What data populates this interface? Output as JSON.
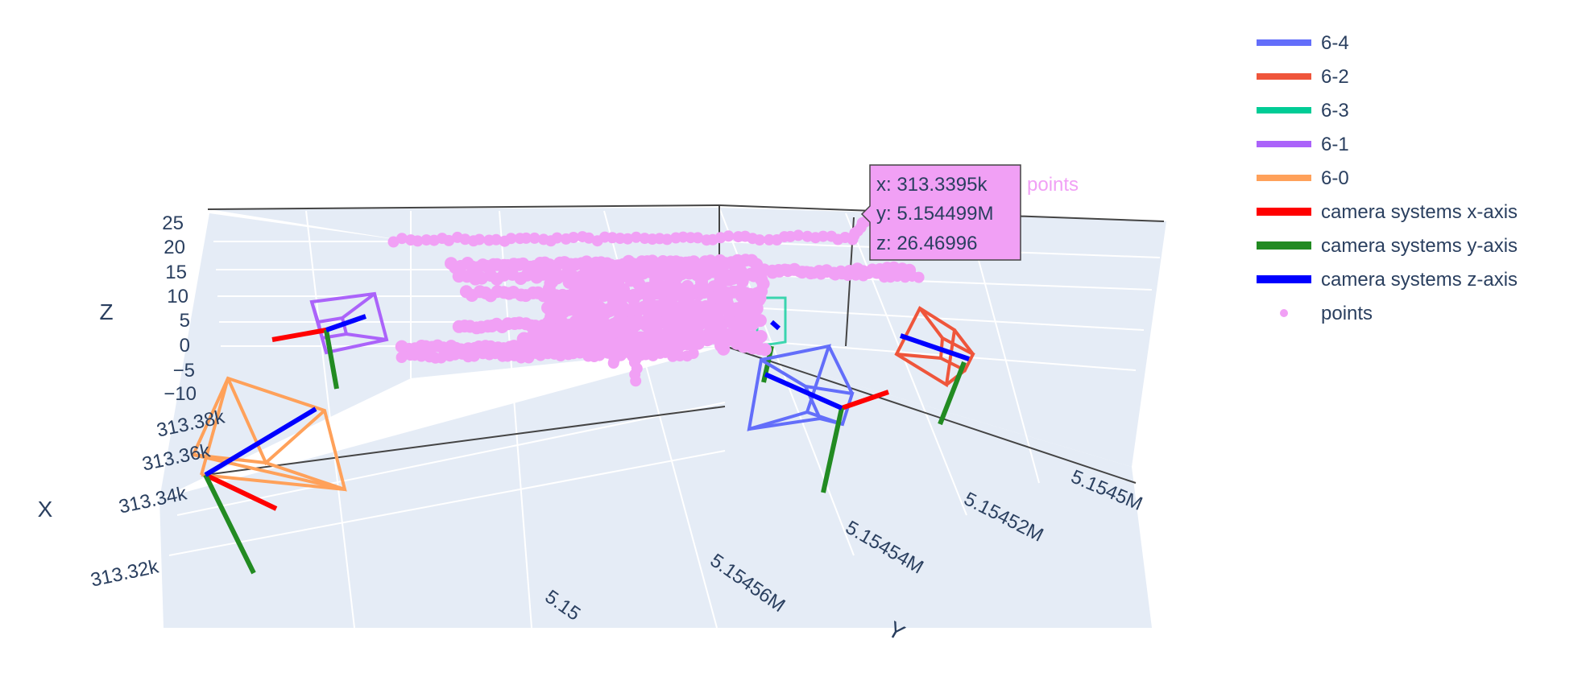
{
  "chart_data": {
    "type": "scatter",
    "mode": "3d",
    "grid": true,
    "legend_placement": "top-right",
    "axes": {
      "x": {
        "label": "X",
        "ticks": [
          "313.32k",
          "313.34k",
          "313.36k",
          "313.38k"
        ]
      },
      "y": {
        "label": "Y",
        "ticks": [
          "5.15",
          "5.15456M",
          "5.15454M",
          "5.15452M",
          "5.1545M"
        ]
      },
      "z": {
        "label": "Z",
        "ticks": [
          "25",
          "20",
          "15",
          "10",
          "5",
          "0",
          "−5",
          "−10"
        ],
        "range": [
          -10,
          25
        ]
      }
    },
    "series": [
      {
        "name": "6-4",
        "color": "#636efa",
        "kind": "camera-frustum"
      },
      {
        "name": "6-2",
        "color": "#ef553b",
        "kind": "camera-frustum"
      },
      {
        "name": "6-3",
        "color": "#00cc96",
        "kind": "camera-frustum"
      },
      {
        "name": "6-1",
        "color": "#ab63fa",
        "kind": "camera-frustum"
      },
      {
        "name": "6-0",
        "color": "#ffa15a",
        "kind": "camera-frustum"
      },
      {
        "name": "camera systems x-axis",
        "color": "#ff0000",
        "kind": "axis-line"
      },
      {
        "name": "camera systems y-axis",
        "color": "#228b22",
        "kind": "axis-line"
      },
      {
        "name": "camera systems z-axis",
        "color": "#0000ff",
        "kind": "axis-line"
      },
      {
        "name": "points",
        "color": "#f1a0f5",
        "kind": "markers"
      }
    ],
    "hover": {
      "x": "x: 313.3395k",
      "y": "y: 5.154499M",
      "z": "z: 26.46996",
      "series_label": "points"
    }
  }
}
